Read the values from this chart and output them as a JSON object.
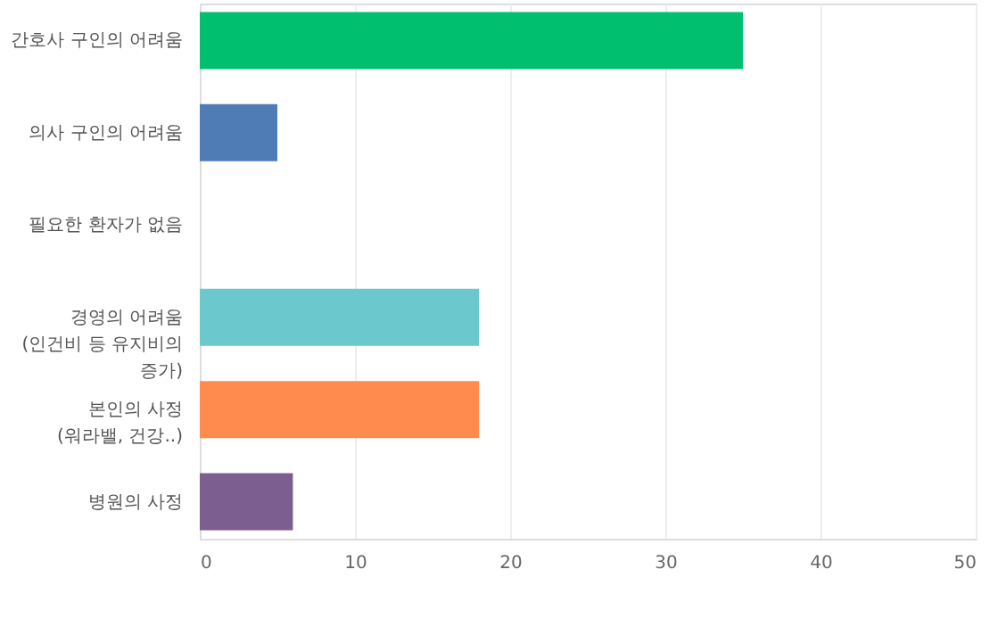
{
  "chart_data": {
    "type": "bar",
    "orientation": "horizontal",
    "categories": [
      "간호사 구인의 어려움",
      "의사 구인의 어려움",
      "필요한 환자가 없음",
      "경영의 어려움 (인건비 등 유지비의 증가)",
      "본인의 사정 (워라밸, 건강..)",
      "병원의 사정"
    ],
    "values": [
      35,
      5,
      0,
      18,
      18,
      6
    ],
    "colors": [
      "#00bf6f",
      "#507cb6",
      "#e0e0e0",
      "#6bc8cd",
      "#ff8b4f",
      "#7d5e90"
    ],
    "xlim": [
      0,
      50
    ],
    "xticks": [
      0,
      10,
      20,
      30,
      40,
      50
    ],
    "grid": "x"
  }
}
